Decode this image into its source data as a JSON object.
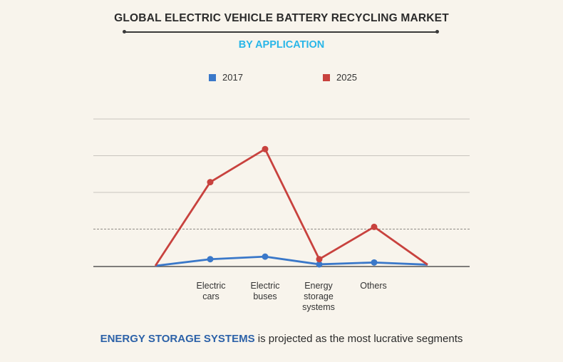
{
  "colors": {
    "series_2017": "#3a78c9",
    "series_2025": "#c8423e",
    "subtitle": "#29b6e8",
    "highlight": "#2d62a8"
  },
  "footer": {
    "highlight": "ENERGY STORAGE SYSTEMS",
    "rest": " is projected as the most lucrative segments"
  },
  "chart_data": {
    "type": "line",
    "title": "GLOBAL ELECTRIC VEHICLE BATTERY RECYCLING  MARKET",
    "subtitle": "BY APPLICATION",
    "categories": [
      "",
      "Electric\ncars",
      "Electric\nbuses",
      "Energy\nstorage\nsystems",
      "Others",
      ""
    ],
    "series": [
      {
        "name": "2017",
        "color": "#3a78c9",
        "values": [
          0,
          0.18,
          0.25,
          0.04,
          0.09,
          0.03
        ]
      },
      {
        "name": "2025",
        "color": "#c8423e",
        "values": [
          0,
          2.28,
          3.18,
          0.18,
          1.06,
          0.03
        ]
      }
    ],
    "markers_on": [
      1,
      2,
      3,
      4
    ],
    "ylim": [
      0,
      4.2
    ],
    "gridlines": [
      1,
      2,
      3,
      4
    ],
    "dashed_gridline": 1,
    "grid": true,
    "legend": "top-center",
    "xlabel": "",
    "ylabel": ""
  }
}
